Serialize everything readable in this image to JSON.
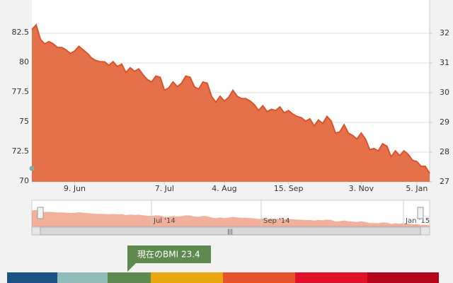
{
  "chart_data": {
    "type": "area",
    "categories": [
      null,
      null,
      null,
      null,
      null,
      null,
      null,
      null,
      null,
      null,
      "9. Jun",
      null,
      null,
      null,
      null,
      null,
      null,
      null,
      null,
      null,
      null,
      null,
      null,
      null,
      null,
      null,
      null,
      null,
      null,
      null,
      null,
      "7. Jul",
      null,
      null,
      null,
      null,
      null,
      null,
      null,
      null,
      null,
      null,
      null,
      null,
      null,
      "4. Aug",
      null,
      null,
      null,
      null,
      null,
      null,
      null,
      null,
      null,
      null,
      null,
      null,
      null,
      null,
      "15. Sep",
      null,
      null,
      null,
      null,
      null,
      null,
      null,
      null,
      null,
      null,
      null,
      null,
      null,
      null,
      null,
      null,
      "3. Nov",
      null,
      null,
      null,
      null,
      null,
      null,
      null,
      null,
      null,
      null,
      null,
      null,
      "5. Jan",
      null,
      null,
      null
    ],
    "values": [
      82.8,
      83.2,
      82.0,
      81.6,
      81.8,
      81.6,
      81.3,
      81.3,
      81.1,
      80.8,
      81.0,
      81.4,
      81.1,
      80.8,
      80.4,
      80.2,
      80.1,
      80.1,
      79.8,
      80.1,
      79.7,
      79.9,
      79.2,
      79.6,
      79.3,
      79.5,
      79.0,
      78.6,
      78.4,
      78.9,
      78.8,
      77.7,
      77.9,
      78.4,
      78.0,
      78.3,
      78.9,
      78.8,
      78.0,
      77.8,
      78.4,
      78.3,
      77.2,
      76.7,
      77.2,
      76.8,
      77.1,
      77.7,
      77.2,
      77.0,
      77.0,
      76.8,
      76.5,
      76.0,
      76.4,
      75.9,
      76.1,
      76.0,
      76.3,
      75.8,
      76.0,
      75.7,
      75.5,
      75.4,
      75.1,
      75.3,
      74.7,
      75.2,
      74.9,
      75.5,
      75.1,
      74.1,
      74.2,
      74.8,
      74.1,
      73.9,
      73.6,
      74.1,
      73.6,
      72.7,
      72.8,
      72.6,
      73.2,
      73.0,
      72.1,
      72.6,
      72.2,
      72.6,
      72.3,
      71.8,
      71.7,
      71.3,
      71.3,
      70.7
    ],
    "color": "#e5714b",
    "ylim": [
      70,
      85
    ],
    "yticks": [
      70,
      72.5,
      75,
      77.5,
      80,
      82.5
    ],
    "y2lim": [
      27,
      33
    ],
    "y2ticks": [
      27,
      28,
      29,
      30,
      31,
      32
    ],
    "grid": true,
    "navigator_labels": [
      "Jul '14",
      "Sep '14",
      "Jan '15"
    ],
    "tooltip": "現在のBMI 23.4"
  }
}
